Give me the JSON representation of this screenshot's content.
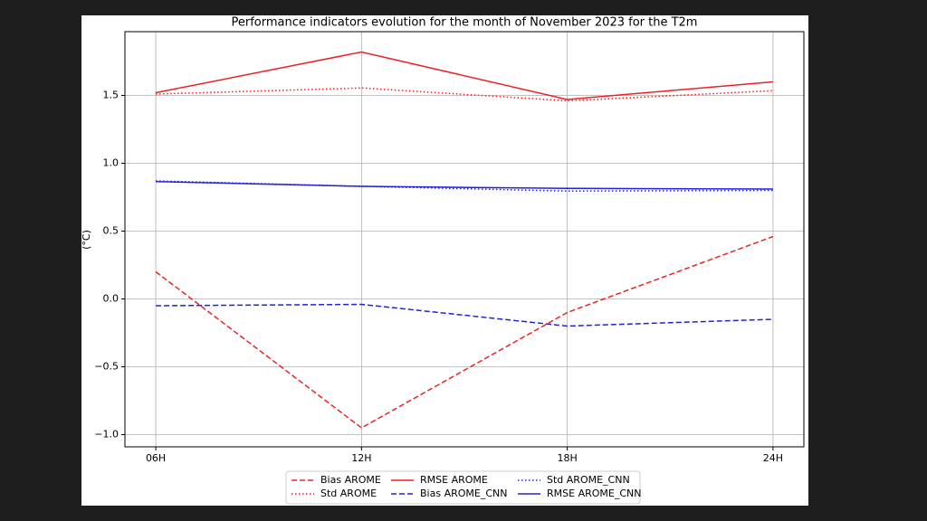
{
  "chart_data": {
    "type": "line",
    "title": "Performance indicators evolution for the month of November 2023 for the T2m",
    "y_label": "(°C)",
    "categories": [
      "06H",
      "12H",
      "18H",
      "24H"
    ],
    "series": [
      {
        "name": "Bias AROME",
        "color": "#ee2222",
        "linestyle": "dashed",
        "values": [
          0.2,
          -0.95,
          -0.1,
          0.46
        ]
      },
      {
        "name": "Std AROME",
        "color": "#ee2222",
        "linestyle": "dotted",
        "values": [
          1.51,
          1.555,
          1.46,
          1.535
        ]
      },
      {
        "name": "RMSE AROME",
        "color": "#ee2222",
        "linestyle": "solid",
        "values": [
          1.52,
          1.82,
          1.47,
          1.6
        ]
      },
      {
        "name": "Bias AROME_CNN",
        "color": "#2222dd",
        "linestyle": "dashed",
        "values": [
          -0.05,
          -0.04,
          -0.2,
          -0.15
        ]
      },
      {
        "name": "Std AROME_CNN",
        "color": "#2222dd",
        "linestyle": "dotted",
        "values": [
          0.87,
          0.83,
          0.795,
          0.8
        ]
      },
      {
        "name": "RMSE AROME_CNN",
        "color": "#2222dd",
        "linestyle": "solid",
        "values": [
          0.865,
          0.83,
          0.815,
          0.81
        ]
      }
    ],
    "ylim": [
      -1.09,
      1.97
    ],
    "yticks": [
      {
        "value": -1,
        "label": "−1.0"
      },
      {
        "value": -0.5,
        "label": "−0.5"
      },
      {
        "value": 0,
        "label": "0.0"
      },
      0.5,
      {
        "value": 1,
        "label": "1.0"
      },
      1.5
    ],
    "grid": true,
    "legend": "bottom"
  }
}
